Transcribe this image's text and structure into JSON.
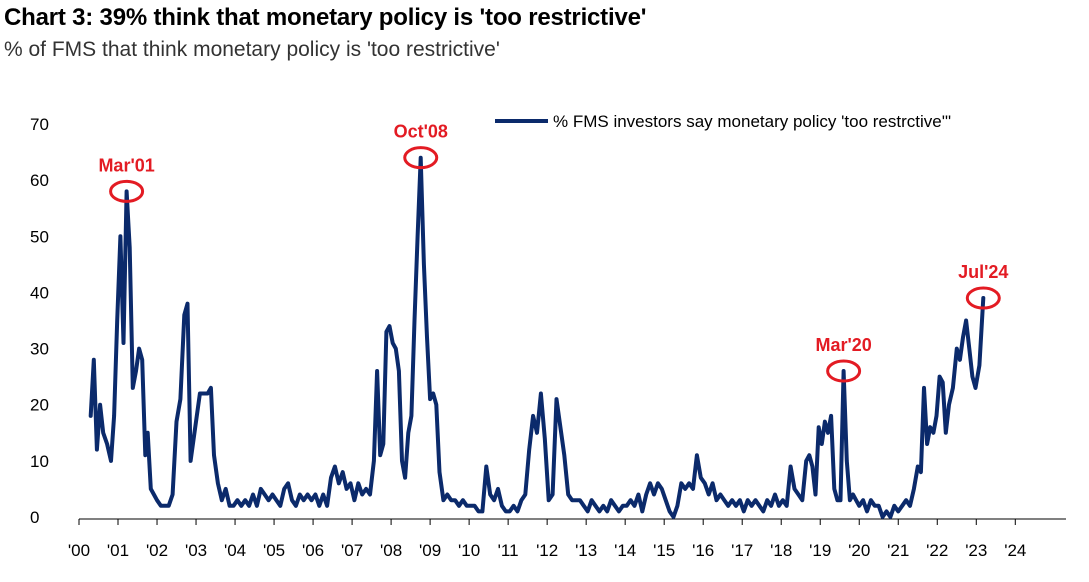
{
  "header": {
    "title": "Chart 3: 39% think that monetary policy is 'too restrictive'",
    "subtitle": "% of FMS that think monetary policy is 'too restrictive'"
  },
  "colors": {
    "line": "#0b2a6b",
    "annotation": "#e31b23"
  },
  "chart_data": {
    "type": "line",
    "title": "Chart 3: 39% think that monetary policy is 'too restrictive'",
    "subtitle": "% of FMS that think monetary policy is 'too restrictive'",
    "ylim": [
      0,
      70
    ],
    "xlim": [
      2000,
      2025.3
    ],
    "y_ticks": [
      0,
      10,
      20,
      30,
      40,
      50,
      60,
      70
    ],
    "x_ticks": [
      {
        "x": 2000,
        "label": "'00"
      },
      {
        "x": 2001,
        "label": "'01"
      },
      {
        "x": 2002,
        "label": "'02"
      },
      {
        "x": 2003,
        "label": "'03"
      },
      {
        "x": 2004,
        "label": "'04"
      },
      {
        "x": 2005,
        "label": "'05"
      },
      {
        "x": 2006,
        "label": "'06"
      },
      {
        "x": 2007,
        "label": "'07"
      },
      {
        "x": 2008,
        "label": "'08"
      },
      {
        "x": 2009,
        "label": "'09"
      },
      {
        "x": 2010,
        "label": "'10"
      },
      {
        "x": 2011,
        "label": "'11"
      },
      {
        "x": 2012,
        "label": "'12"
      },
      {
        "x": 2013,
        "label": "'13"
      },
      {
        "x": 2014,
        "label": "'14"
      },
      {
        "x": 2015,
        "label": "'15"
      },
      {
        "x": 2016,
        "label": "'16"
      },
      {
        "x": 2017,
        "label": "'17"
      },
      {
        "x": 2018,
        "label": "'18"
      },
      {
        "x": 2019,
        "label": "'19"
      },
      {
        "x": 2020,
        "label": "'20"
      },
      {
        "x": 2021,
        "label": "'21"
      },
      {
        "x": 2022,
        "label": "'22"
      },
      {
        "x": 2023,
        "label": "'23"
      },
      {
        "x": 2024,
        "label": "'24"
      }
    ],
    "legend": "top-right",
    "grid": false,
    "series": [
      {
        "name": "% FMS investors say monetary policy 'too restrctive'\"",
        "points": [
          [
            2000.3,
            18
          ],
          [
            2000.38,
            28
          ],
          [
            2000.46,
            12
          ],
          [
            2000.54,
            20
          ],
          [
            2000.62,
            15
          ],
          [
            2000.72,
            13
          ],
          [
            2000.82,
            10
          ],
          [
            2000.9,
            18
          ],
          [
            2000.98,
            35
          ],
          [
            2001.06,
            50
          ],
          [
            2001.14,
            31
          ],
          [
            2001.22,
            58
          ],
          [
            2001.3,
            48
          ],
          [
            2001.38,
            23
          ],
          [
            2001.46,
            26
          ],
          [
            2001.54,
            30
          ],
          [
            2001.62,
            28
          ],
          [
            2001.7,
            11
          ],
          [
            2001.76,
            15
          ],
          [
            2001.84,
            5
          ],
          [
            2001.92,
            4
          ],
          [
            2002.0,
            3
          ],
          [
            2002.1,
            2
          ],
          [
            2002.2,
            2
          ],
          [
            2002.3,
            2
          ],
          [
            2002.4,
            4
          ],
          [
            2002.5,
            17
          ],
          [
            2002.6,
            21
          ],
          [
            2002.7,
            36
          ],
          [
            2002.78,
            38
          ],
          [
            2002.86,
            10
          ],
          [
            2002.94,
            14
          ],
          [
            2003.02,
            18
          ],
          [
            2003.1,
            22
          ],
          [
            2003.2,
            22
          ],
          [
            2003.3,
            22
          ],
          [
            2003.38,
            23
          ],
          [
            2003.46,
            11
          ],
          [
            2003.56,
            6
          ],
          [
            2003.66,
            3
          ],
          [
            2003.76,
            5
          ],
          [
            2003.86,
            2
          ],
          [
            2003.96,
            2
          ],
          [
            2004.06,
            3
          ],
          [
            2004.16,
            2
          ],
          [
            2004.26,
            3
          ],
          [
            2004.36,
            2
          ],
          [
            2004.46,
            4
          ],
          [
            2004.56,
            2
          ],
          [
            2004.66,
            5
          ],
          [
            2004.76,
            4
          ],
          [
            2004.86,
            3
          ],
          [
            2004.96,
            4
          ],
          [
            2005.06,
            3
          ],
          [
            2005.16,
            2
          ],
          [
            2005.26,
            5
          ],
          [
            2005.36,
            6
          ],
          [
            2005.46,
            3
          ],
          [
            2005.56,
            2
          ],
          [
            2005.66,
            4
          ],
          [
            2005.76,
            3
          ],
          [
            2005.86,
            4
          ],
          [
            2005.96,
            3
          ],
          [
            2006.06,
            4
          ],
          [
            2006.16,
            2
          ],
          [
            2006.26,
            4
          ],
          [
            2006.36,
            2
          ],
          [
            2006.46,
            7
          ],
          [
            2006.56,
            9
          ],
          [
            2006.66,
            6
          ],
          [
            2006.76,
            8
          ],
          [
            2006.86,
            5
          ],
          [
            2006.96,
            6
          ],
          [
            2007.06,
            3
          ],
          [
            2007.16,
            6
          ],
          [
            2007.26,
            4
          ],
          [
            2007.36,
            5
          ],
          [
            2007.46,
            4
          ],
          [
            2007.56,
            10
          ],
          [
            2007.64,
            26
          ],
          [
            2007.72,
            11
          ],
          [
            2007.8,
            13
          ],
          [
            2007.88,
            33
          ],
          [
            2007.96,
            34
          ],
          [
            2008.04,
            31
          ],
          [
            2008.12,
            30
          ],
          [
            2008.2,
            26
          ],
          [
            2008.28,
            10
          ],
          [
            2008.36,
            7
          ],
          [
            2008.44,
            15
          ],
          [
            2008.52,
            18
          ],
          [
            2008.6,
            35
          ],
          [
            2008.68,
            50
          ],
          [
            2008.76,
            64
          ],
          [
            2008.84,
            45
          ],
          [
            2008.92,
            32
          ],
          [
            2009.0,
            21
          ],
          [
            2009.08,
            22
          ],
          [
            2009.16,
            20
          ],
          [
            2009.24,
            8
          ],
          [
            2009.34,
            3
          ],
          [
            2009.44,
            4
          ],
          [
            2009.54,
            3
          ],
          [
            2009.64,
            3
          ],
          [
            2009.74,
            2
          ],
          [
            2009.84,
            3
          ],
          [
            2009.94,
            2
          ],
          [
            2010.04,
            2
          ],
          [
            2010.14,
            2
          ],
          [
            2010.24,
            1
          ],
          [
            2010.34,
            1
          ],
          [
            2010.44,
            9
          ],
          [
            2010.54,
            4
          ],
          [
            2010.64,
            3
          ],
          [
            2010.74,
            5
          ],
          [
            2010.84,
            2
          ],
          [
            2010.94,
            1
          ],
          [
            2011.04,
            1
          ],
          [
            2011.14,
            2
          ],
          [
            2011.24,
            1
          ],
          [
            2011.34,
            3
          ],
          [
            2011.44,
            4
          ],
          [
            2011.54,
            12
          ],
          [
            2011.64,
            18
          ],
          [
            2011.74,
            15
          ],
          [
            2011.84,
            22
          ],
          [
            2011.94,
            14
          ],
          [
            2012.04,
            3
          ],
          [
            2012.14,
            4
          ],
          [
            2012.24,
            21
          ],
          [
            2012.34,
            16
          ],
          [
            2012.44,
            11
          ],
          [
            2012.54,
            4
          ],
          [
            2012.64,
            3
          ],
          [
            2012.74,
            3
          ],
          [
            2012.84,
            3
          ],
          [
            2012.94,
            2
          ],
          [
            2013.04,
            1
          ],
          [
            2013.14,
            3
          ],
          [
            2013.24,
            2
          ],
          [
            2013.34,
            1
          ],
          [
            2013.44,
            2
          ],
          [
            2013.54,
            1
          ],
          [
            2013.64,
            3
          ],
          [
            2013.74,
            2
          ],
          [
            2013.84,
            1
          ],
          [
            2013.94,
            2
          ],
          [
            2014.04,
            2
          ],
          [
            2014.14,
            3
          ],
          [
            2014.24,
            2
          ],
          [
            2014.34,
            4
          ],
          [
            2014.44,
            1
          ],
          [
            2014.54,
            4
          ],
          [
            2014.64,
            6
          ],
          [
            2014.74,
            4
          ],
          [
            2014.84,
            6
          ],
          [
            2014.94,
            5
          ],
          [
            2015.04,
            3
          ],
          [
            2015.14,
            1
          ],
          [
            2015.24,
            0
          ],
          [
            2015.34,
            2
          ],
          [
            2015.44,
            6
          ],
          [
            2015.54,
            5
          ],
          [
            2015.64,
            6
          ],
          [
            2015.74,
            5
          ],
          [
            2015.84,
            11
          ],
          [
            2015.94,
            7
          ],
          [
            2016.04,
            6
          ],
          [
            2016.14,
            4
          ],
          [
            2016.24,
            6
          ],
          [
            2016.34,
            3
          ],
          [
            2016.44,
            4
          ],
          [
            2016.54,
            3
          ],
          [
            2016.64,
            2
          ],
          [
            2016.74,
            3
          ],
          [
            2016.84,
            2
          ],
          [
            2016.94,
            3
          ],
          [
            2017.04,
            1
          ],
          [
            2017.14,
            3
          ],
          [
            2017.24,
            2
          ],
          [
            2017.34,
            3
          ],
          [
            2017.44,
            2
          ],
          [
            2017.54,
            1
          ],
          [
            2017.64,
            3
          ],
          [
            2017.74,
            2
          ],
          [
            2017.84,
            4
          ],
          [
            2017.94,
            2
          ],
          [
            2018.04,
            3
          ],
          [
            2018.14,
            2
          ],
          [
            2018.24,
            9
          ],
          [
            2018.34,
            5
          ],
          [
            2018.44,
            4
          ],
          [
            2018.54,
            3
          ],
          [
            2018.64,
            10
          ],
          [
            2018.72,
            11
          ],
          [
            2018.8,
            9
          ],
          [
            2018.88,
            4
          ],
          [
            2018.96,
            16
          ],
          [
            2019.04,
            13
          ],
          [
            2019.12,
            17
          ],
          [
            2019.2,
            15
          ],
          [
            2019.28,
            18
          ],
          [
            2019.36,
            5
          ],
          [
            2019.44,
            3
          ],
          [
            2019.52,
            3
          ],
          [
            2019.6,
            26
          ],
          [
            2019.68,
            10
          ],
          [
            2019.76,
            3
          ],
          [
            2019.84,
            4
          ],
          [
            2019.92,
            3
          ],
          [
            2020.0,
            2
          ],
          [
            2020.1,
            3
          ],
          [
            2020.2,
            1
          ],
          [
            2020.3,
            3
          ],
          [
            2020.4,
            2
          ],
          [
            2020.5,
            2
          ],
          [
            2020.6,
            0
          ],
          [
            2020.7,
            1
          ],
          [
            2020.8,
            0
          ],
          [
            2020.9,
            2
          ],
          [
            2021.0,
            1
          ],
          [
            2021.1,
            2
          ],
          [
            2021.2,
            3
          ],
          [
            2021.3,
            2
          ],
          [
            2021.4,
            5
          ],
          [
            2021.5,
            9
          ],
          [
            2021.58,
            8
          ],
          [
            2021.66,
            23
          ],
          [
            2021.74,
            13
          ],
          [
            2021.82,
            16
          ],
          [
            2021.9,
            15
          ],
          [
            2021.98,
            18
          ],
          [
            2022.06,
            25
          ],
          [
            2022.14,
            24
          ],
          [
            2022.22,
            15
          ],
          [
            2022.3,
            20
          ],
          [
            2022.4,
            23
          ],
          [
            2022.5,
            30
          ],
          [
            2022.58,
            28
          ],
          [
            2022.66,
            32
          ],
          [
            2022.74,
            35
          ],
          [
            2022.82,
            30
          ],
          [
            2022.9,
            25
          ],
          [
            2022.98,
            23
          ],
          [
            2023.08,
            27
          ],
          [
            2023.18,
            39
          ]
        ]
      }
    ],
    "annotations": [
      {
        "label": "Mar'01",
        "x": 2001.22,
        "y": 58
      },
      {
        "label": "Oct'08",
        "x": 2008.76,
        "y": 64
      },
      {
        "label": "Mar'20",
        "x": 2019.6,
        "y": 26
      },
      {
        "label": "Jul'24",
        "x": 2023.18,
        "y": 39
      }
    ]
  }
}
